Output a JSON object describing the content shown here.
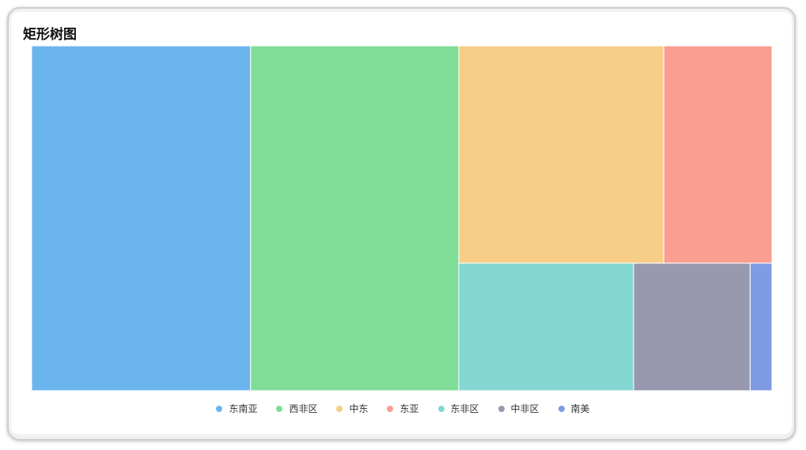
{
  "chart_data": {
    "type": "treemap",
    "title": "矩形树图",
    "items": [
      {
        "name": "东南亚",
        "value": 122,
        "color": "#6bb5ef"
      },
      {
        "name": "西非区",
        "value": 116,
        "color": "#7fdd97"
      },
      {
        "name": "中东",
        "value": 72,
        "color": "#f7cd87"
      },
      {
        "name": "东亚",
        "value": 38,
        "color": "#f99e91"
      },
      {
        "name": "东非区",
        "value": 36,
        "color": "#84d7d3"
      },
      {
        "name": "中非区",
        "value": 24,
        "color": "#9898ae"
      },
      {
        "name": "南美",
        "value": 4.5,
        "color": "#7f9be3"
      }
    ],
    "legend_position": "bottom"
  }
}
